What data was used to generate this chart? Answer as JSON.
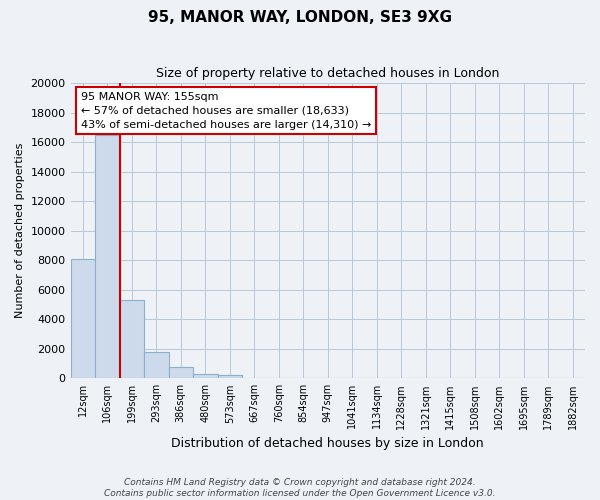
{
  "title": "95, MANOR WAY, LONDON, SE3 9XG",
  "subtitle": "Size of property relative to detached houses in London",
  "xlabel": "Distribution of detached houses by size in London",
  "ylabel": "Number of detached properties",
  "bar_color": "#ccdaeb",
  "bar_edge_color": "#8ab0cc",
  "vline_color": "#cc0000",
  "categories": [
    "12sqm",
    "106sqm",
    "199sqm",
    "293sqm",
    "386sqm",
    "480sqm",
    "573sqm",
    "667sqm",
    "760sqm",
    "854sqm",
    "947sqm",
    "1041sqm",
    "1134sqm",
    "1228sqm",
    "1321sqm",
    "1415sqm",
    "1508sqm",
    "1602sqm",
    "1695sqm",
    "1789sqm",
    "1882sqm"
  ],
  "values": [
    8100,
    16500,
    5300,
    1800,
    750,
    280,
    200,
    0,
    0,
    0,
    0,
    0,
    0,
    0,
    0,
    0,
    0,
    0,
    0,
    0,
    0
  ],
  "ylim": [
    0,
    20000
  ],
  "yticks": [
    0,
    2000,
    4000,
    6000,
    8000,
    10000,
    12000,
    14000,
    16000,
    18000,
    20000
  ],
  "annotation_title": "95 MANOR WAY: 155sqm",
  "annotation_line1": "← 57% of detached houses are smaller (18,633)",
  "annotation_line2": "43% of semi-detached houses are larger (14,310) →",
  "footer_line1": "Contains HM Land Registry data © Crown copyright and database right 2024.",
  "footer_line2": "Contains public sector information licensed under the Open Government Licence v3.0.",
  "bg_color": "#eef2f7",
  "plot_bg_color": "#eef2f7",
  "vline_pos": 1.52
}
